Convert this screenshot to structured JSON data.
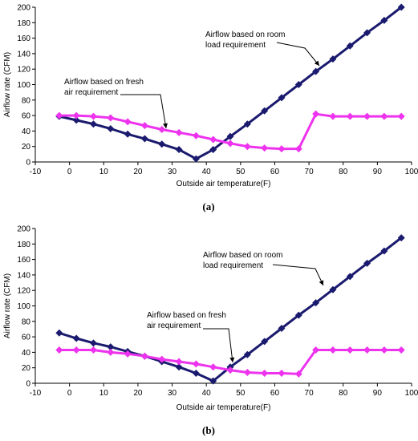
{
  "chart_data": [
    {
      "type": "line",
      "panel_label": "(a)",
      "xlabel": "Outside air temperature(F)",
      "ylabel": "Airflow rate (CFM)",
      "xlim": [
        -10,
        100
      ],
      "ylim": [
        0,
        200
      ],
      "xticks": [
        -10,
        0,
        10,
        20,
        30,
        40,
        50,
        60,
        70,
        80,
        90,
        100
      ],
      "yticks": [
        0,
        20,
        40,
        60,
        80,
        100,
        120,
        140,
        160,
        180,
        200
      ],
      "grid": false,
      "legend": "none",
      "series": [
        {
          "color": "#1a1a6e",
          "marker": "diamond",
          "x": [
            -3,
            2,
            7,
            12,
            17,
            22,
            27,
            32,
            37,
            42,
            47,
            52,
            57,
            62,
            67,
            72,
            77,
            82,
            87,
            92,
            97
          ],
          "y": [
            59,
            54,
            49,
            43,
            36,
            30,
            23,
            16,
            4,
            16,
            33,
            49,
            66,
            83,
            100,
            117,
            133,
            150,
            167,
            183,
            200
          ]
        },
        {
          "color": "#ee33ee",
          "marker": "diamond",
          "x": [
            -3,
            2,
            7,
            12,
            17,
            22,
            27,
            32,
            37,
            42,
            47,
            52,
            57,
            62,
            67,
            72,
            77,
            82,
            87,
            92,
            97
          ],
          "y": [
            60,
            60,
            59,
            57,
            52,
            47,
            42,
            38,
            34,
            29,
            24,
            20,
            18,
            17,
            17,
            62,
            59,
            59,
            59,
            59,
            59
          ]
        }
      ],
      "annotations": [
        {
          "lines": [
            "Airflow based on room",
            "load requirement"
          ]
        },
        {
          "lines": [
            "Airflow based on fresh",
            "air requirement"
          ]
        }
      ]
    },
    {
      "type": "line",
      "panel_label": "(b)",
      "xlabel": "Outside air temperature(F)",
      "ylabel": "Airflow rate (CFM)",
      "xlim": [
        -10,
        100
      ],
      "ylim": [
        0,
        200
      ],
      "xticks": [
        -10,
        0,
        10,
        20,
        30,
        40,
        50,
        60,
        70,
        80,
        90,
        100
      ],
      "yticks": [
        0,
        20,
        40,
        60,
        80,
        100,
        120,
        140,
        160,
        180,
        200
      ],
      "grid": false,
      "legend": "none",
      "series": [
        {
          "color": "#1a1a6e",
          "marker": "diamond",
          "x": [
            -3,
            2,
            7,
            12,
            17,
            22,
            27,
            32,
            37,
            42,
            47,
            52,
            57,
            62,
            67,
            72,
            77,
            82,
            87,
            92,
            97
          ],
          "y": [
            65,
            58,
            52,
            47,
            41,
            35,
            28,
            21,
            13,
            3,
            21,
            37,
            54,
            71,
            88,
            104,
            121,
            138,
            155,
            171,
            188
          ]
        },
        {
          "color": "#ee33ee",
          "marker": "diamond",
          "x": [
            -3,
            2,
            7,
            12,
            17,
            22,
            27,
            32,
            37,
            42,
            47,
            52,
            57,
            62,
            67,
            72,
            77,
            82,
            87,
            92,
            97
          ],
          "y": [
            43,
            43,
            43,
            40,
            38,
            35,
            31,
            28,
            25,
            21,
            17,
            14,
            13,
            13,
            12,
            43,
            43,
            43,
            43,
            43,
            43
          ]
        }
      ],
      "annotations": [
        {
          "lines": [
            "Airflow based on room",
            "load requirement"
          ]
        },
        {
          "lines": [
            "Airflow based on fresh",
            "air requirement"
          ]
        }
      ]
    }
  ]
}
